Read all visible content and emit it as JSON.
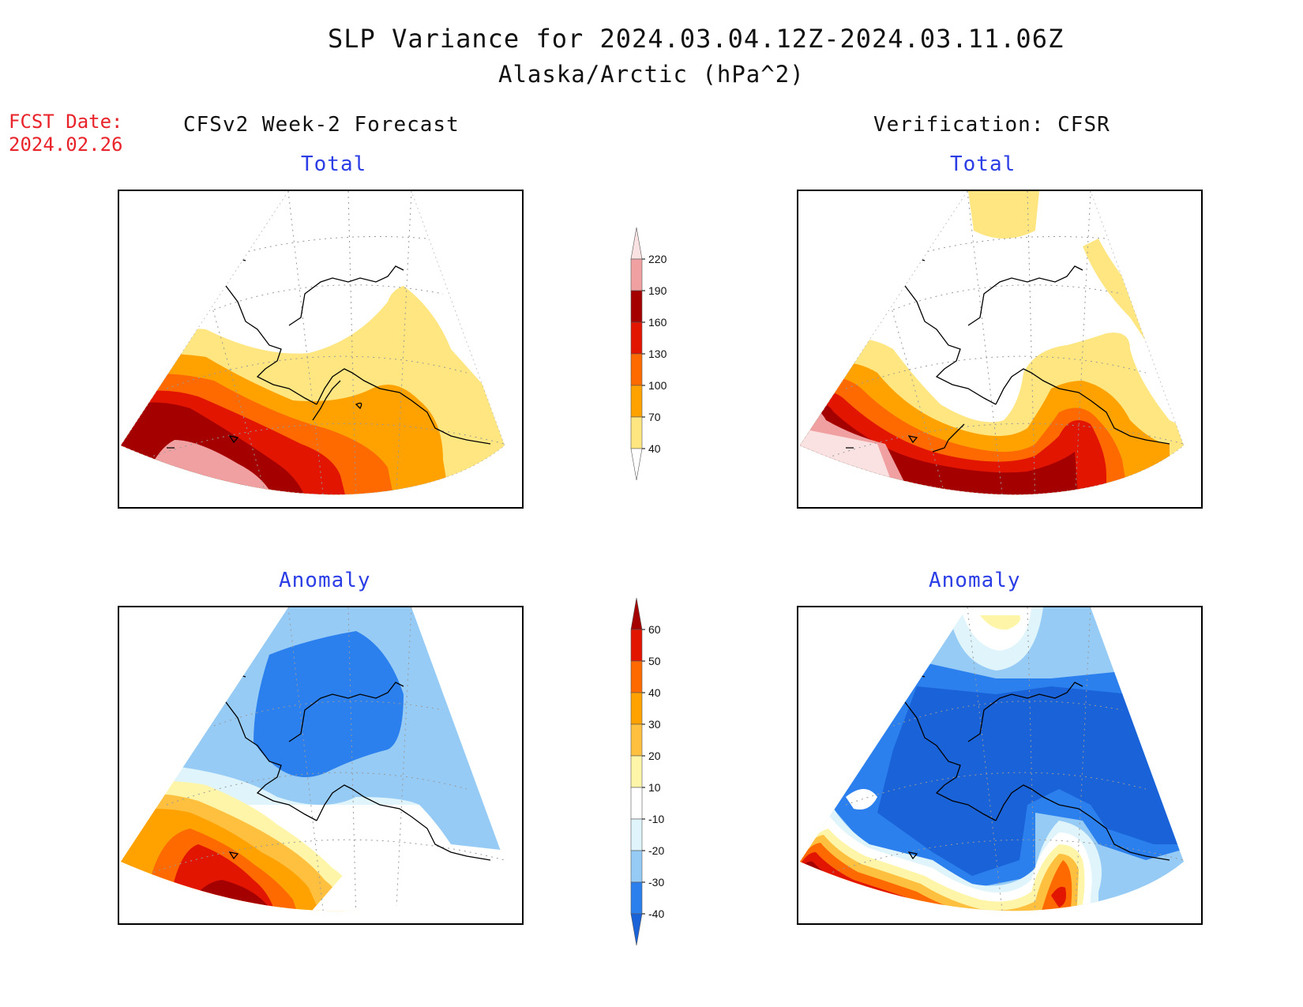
{
  "header": {
    "title": "SLP Variance for 2024.03.04.12Z-2024.03.11.06Z",
    "subtitle": "Alaska/Arctic (hPa^2)"
  },
  "fcst_date": {
    "label": "FCST Date:",
    "value": "2024.02.26"
  },
  "columns": {
    "left": "CFSv2 Week-2 Forecast",
    "right": "Verification: CFSR"
  },
  "panels": {
    "top_left": "Total",
    "top_right": "Total",
    "bottom_left": "Anomaly",
    "bottom_right": "Anomaly"
  },
  "colorbar_total": {
    "ticks": [
      "40",
      "70",
      "100",
      "130",
      "160",
      "190",
      "220"
    ],
    "colors": [
      "#ffffff",
      "#ffe680",
      "#ffa200",
      "#ff6a00",
      "#e11500",
      "#a50000",
      "#f0a0a0",
      "#fbe2e2"
    ]
  },
  "colorbar_anomaly": {
    "ticks": [
      "-40",
      "-30",
      "-20",
      "-10",
      "10",
      "20",
      "30",
      "40",
      "50",
      "60"
    ],
    "colors": [
      "#1a62d8",
      "#2b80ee",
      "#96cbf5",
      "#dff4fb",
      "#ffffff",
      "#fff5a8",
      "#ffc040",
      "#ffa200",
      "#ff6a00",
      "#e11500",
      "#a50000"
    ]
  }
}
